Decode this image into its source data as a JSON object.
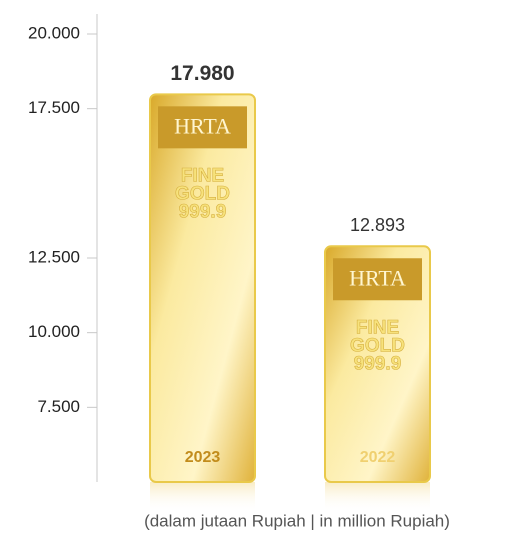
{
  "chart_data": {
    "type": "bar",
    "categories": [
      "2023",
      "2022"
    ],
    "values": [
      17980,
      12893
    ],
    "value_labels": [
      "17.980",
      "12.893"
    ],
    "bar_text": [
      "HRTA",
      "FINE",
      "GOLD",
      "999.9"
    ],
    "note": "(dalam jutaan Rupiah | in million Rupiah)",
    "ylim": [
      5000,
      20000
    ],
    "yticks": [
      {
        "value": 20000,
        "label": "20.000"
      },
      {
        "value": 17500,
        "label": "17.500"
      },
      {
        "value": 12500,
        "label": "12.500"
      },
      {
        "value": 10000,
        "label": "10.000"
      },
      {
        "value": 7500,
        "label": "7.500"
      }
    ],
    "color": "#e9c94a"
  }
}
